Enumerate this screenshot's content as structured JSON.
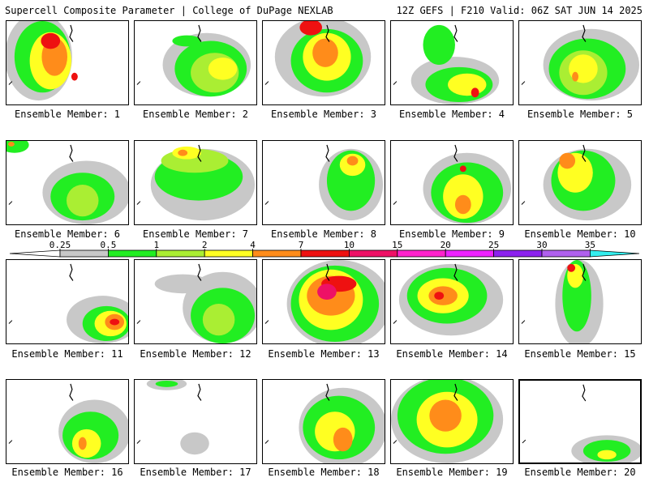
{
  "header": {
    "title_left": "Supercell Composite Parameter | College of DuPage NEXLAB",
    "title_right": "12Z GEFS | F210 Valid: 06Z SAT JUN 14 2025"
  },
  "colorbar": {
    "tick_labels": [
      "0.25",
      "0.5",
      "1",
      "2",
      "4",
      "7",
      "10",
      "15",
      "20",
      "25",
      "30",
      "35"
    ],
    "colors": [
      "#ffffff",
      "#c8c8c8",
      "#22ee22",
      "#aaee33",
      "#ffff22",
      "#ff8c1a",
      "#ee1111",
      "#ee1166",
      "#ff22cc",
      "#ee22ff",
      "#8c22ee",
      "#b060ee",
      "#33eeee"
    ]
  },
  "panels": [
    {
      "label": "Ensemble Member: 1",
      "blobs": [
        [
          40,
          45,
          42,
          55,
          "#c8c8c8"
        ],
        [
          45,
          45,
          35,
          45,
          "#22ee22"
        ],
        [
          55,
          50,
          26,
          36,
          "#ffff22"
        ],
        [
          60,
          45,
          16,
          24,
          "#ff8c1a"
        ],
        [
          55,
          25,
          12,
          10,
          "#ee1111"
        ],
        [
          85,
          70,
          4,
          5,
          "#ee1111"
        ]
      ]
    },
    {
      "label": "Ensemble Member: 2",
      "blobs": [
        [
          90,
          55,
          55,
          40,
          "#c8c8c8"
        ],
        [
          95,
          60,
          45,
          35,
          "#22ee22"
        ],
        [
          100,
          65,
          30,
          25,
          "#aaee33"
        ],
        [
          110,
          60,
          18,
          14,
          "#ffff22"
        ],
        [
          65,
          25,
          18,
          7,
          "#22ee22"
        ]
      ]
    },
    {
      "label": "Ensemble Member: 3",
      "blobs": [
        [
          75,
          45,
          60,
          50,
          "#c8c8c8"
        ],
        [
          80,
          50,
          45,
          40,
          "#22ee22"
        ],
        [
          80,
          45,
          30,
          30,
          "#ffff22"
        ],
        [
          78,
          40,
          16,
          18,
          "#ff8c1a"
        ],
        [
          60,
          8,
          14,
          10,
          "#ee1111"
        ]
      ]
    },
    {
      "label": "Ensemble Member: 4",
      "blobs": [
        [
          80,
          75,
          55,
          30,
          "#c8c8c8"
        ],
        [
          85,
          80,
          42,
          22,
          "#22ee22"
        ],
        [
          95,
          80,
          24,
          14,
          "#ffff22"
        ],
        [
          105,
          90,
          5,
          6,
          "#ee1111"
        ],
        [
          60,
          30,
          20,
          25,
          "#22ee22"
        ]
      ]
    },
    {
      "label": "Ensemble Member: 5",
      "blobs": [
        [
          90,
          55,
          60,
          45,
          "#c8c8c8"
        ],
        [
          85,
          60,
          48,
          38,
          "#22ee22"
        ],
        [
          80,
          65,
          30,
          28,
          "#aaee33"
        ],
        [
          80,
          60,
          18,
          18,
          "#ffff22"
        ],
        [
          70,
          70,
          4,
          6,
          "#ff8c1a"
        ]
      ]
    },
    {
      "label": "Ensemble Member: 6",
      "blobs": [
        [
          100,
          65,
          55,
          40,
          "#c8c8c8"
        ],
        [
          95,
          70,
          40,
          30,
          "#22ee22"
        ],
        [
          95,
          75,
          20,
          20,
          "#aaee33"
        ],
        [
          10,
          5,
          18,
          10,
          "#22ee22"
        ],
        [
          6,
          4,
          4,
          3,
          "#ff8c1a"
        ]
      ]
    },
    {
      "label": "Ensemble Member: 7",
      "blobs": [
        [
          85,
          55,
          65,
          45,
          "#c8c8c8"
        ],
        [
          80,
          45,
          55,
          30,
          "#22ee22"
        ],
        [
          75,
          25,
          42,
          15,
          "#aaee33"
        ],
        [
          65,
          15,
          18,
          8,
          "#ffff22"
        ],
        [
          60,
          15,
          6,
          4,
          "#ff8c1a"
        ]
      ]
    },
    {
      "label": "Ensemble Member: 8",
      "blobs": [
        [
          110,
          55,
          40,
          45,
          "#c8c8c8"
        ],
        [
          110,
          50,
          30,
          38,
          "#22ee22"
        ],
        [
          112,
          30,
          16,
          14,
          "#ffff22"
        ],
        [
          112,
          25,
          7,
          6,
          "#ff8c1a"
        ]
      ]
    },
    {
      "label": "Ensemble Member: 9",
      "blobs": [
        [
          95,
          60,
          55,
          45,
          "#c8c8c8"
        ],
        [
          95,
          65,
          45,
          38,
          "#22ee22"
        ],
        [
          90,
          70,
          25,
          28,
          "#ffff22"
        ],
        [
          90,
          80,
          10,
          12,
          "#ff8c1a"
        ],
        [
          90,
          35,
          4,
          4,
          "#ee1111"
        ]
      ]
    },
    {
      "label": "Ensemble Member: 10",
      "blobs": [
        [
          85,
          55,
          55,
          45,
          "#c8c8c8"
        ],
        [
          80,
          50,
          40,
          38,
          "#22ee22"
        ],
        [
          70,
          40,
          22,
          25,
          "#ffff22"
        ],
        [
          60,
          25,
          10,
          10,
          "#ff8c1a"
        ]
      ]
    },
    {
      "label": "Ensemble Member: 11",
      "blobs": [
        [
          120,
          75,
          45,
          30,
          "#c8c8c8"
        ],
        [
          125,
          80,
          30,
          22,
          "#22ee22"
        ],
        [
          130,
          80,
          20,
          16,
          "#ffff22"
        ],
        [
          135,
          78,
          12,
          10,
          "#ff8c1a"
        ],
        [
          135,
          78,
          6,
          4,
          "#ee1111"
        ]
      ]
    },
    {
      "label": "Ensemble Member: 12",
      "blobs": [
        [
          110,
          60,
          50,
          45,
          "#c8c8c8"
        ],
        [
          110,
          70,
          40,
          35,
          "#22ee22"
        ],
        [
          105,
          75,
          20,
          20,
          "#aaee33"
        ],
        [
          60,
          30,
          35,
          12,
          "#c8c8c8"
        ]
      ]
    },
    {
      "label": "Ensemble Member: 13",
      "blobs": [
        [
          95,
          55,
          65,
          55,
          "#c8c8c8"
        ],
        [
          90,
          55,
          55,
          48,
          "#22ee22"
        ],
        [
          85,
          50,
          40,
          38,
          "#ffff22"
        ],
        [
          85,
          45,
          30,
          25,
          "#ff8c1a"
        ],
        [
          95,
          30,
          22,
          10,
          "#ee1111"
        ],
        [
          80,
          40,
          12,
          10,
          "#ee1166"
        ]
      ]
    },
    {
      "label": "Ensemble Member: 14",
      "blobs": [
        [
          75,
          50,
          65,
          45,
          "#c8c8c8"
        ],
        [
          70,
          45,
          50,
          35,
          "#22ee22"
        ],
        [
          65,
          45,
          32,
          22,
          "#ffff22"
        ],
        [
          65,
          45,
          18,
          12,
          "#ff8c1a"
        ],
        [
          60,
          45,
          6,
          5,
          "#ee1111"
        ]
      ]
    },
    {
      "label": "Ensemble Member: 15",
      "blobs": [
        [
          75,
          55,
          30,
          55,
          "#c8c8c8"
        ],
        [
          72,
          45,
          18,
          45,
          "#22ee22"
        ],
        [
          70,
          20,
          10,
          15,
          "#ffff22"
        ],
        [
          65,
          10,
          5,
          5,
          "#ee1111"
        ]
      ]
    },
    {
      "label": "Ensemble Member: 16",
      "blobs": [
        [
          110,
          65,
          45,
          40,
          "#c8c8c8"
        ],
        [
          105,
          70,
          35,
          30,
          "#22ee22"
        ],
        [
          100,
          80,
          18,
          18,
          "#ffff22"
        ],
        [
          95,
          80,
          5,
          8,
          "#ff8c1a"
        ]
      ]
    },
    {
      "label": "Ensemble Member: 17",
      "blobs": [
        [
          75,
          80,
          18,
          14,
          "#c8c8c8"
        ],
        [
          40,
          5,
          25,
          8,
          "#c8c8c8"
        ],
        [
          40,
          5,
          14,
          4,
          "#22ee22"
        ]
      ]
    },
    {
      "label": "Ensemble Member: 18",
      "blobs": [
        [
          100,
          60,
          55,
          50,
          "#c8c8c8"
        ],
        [
          95,
          60,
          45,
          40,
          "#22ee22"
        ],
        [
          90,
          65,
          25,
          25,
          "#ffff22"
        ],
        [
          100,
          75,
          12,
          15,
          "#ff8c1a"
        ]
      ]
    },
    {
      "label": "Ensemble Member: 19",
      "blobs": [
        [
          70,
          50,
          70,
          55,
          "#c8c8c8"
        ],
        [
          68,
          45,
          60,
          48,
          "#22ee22"
        ],
        [
          70,
          50,
          38,
          35,
          "#ffff22"
        ],
        [
          68,
          45,
          20,
          20,
          "#ff8c1a"
        ]
      ]
    },
    {
      "label": "Ensemble Member: 20",
      "blobs": [
        [
          110,
          90,
          45,
          20,
          "#c8c8c8"
        ],
        [
          110,
          90,
          30,
          14,
          "#22ee22"
        ],
        [
          110,
          95,
          12,
          6,
          "#ffff22"
        ]
      ]
    }
  ]
}
